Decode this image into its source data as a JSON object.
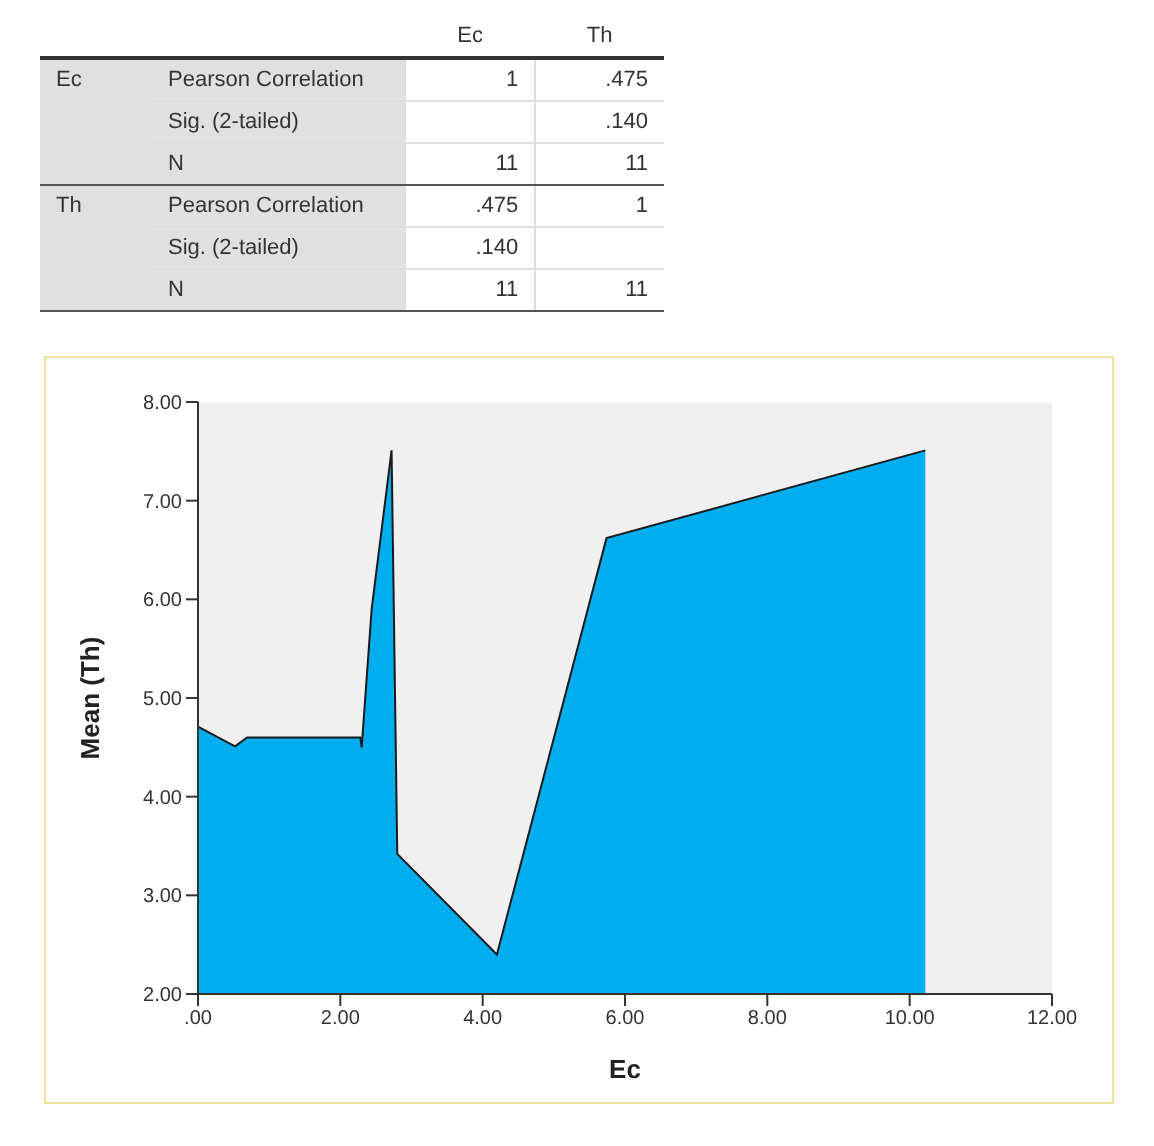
{
  "chart_data": [
    {
      "type": "heatmap",
      "categories": [
        "Ec",
        "Th"
      ],
      "y_categories": [
        "Pearson Correlation",
        "Sig. (2-tailed)",
        "N",
        "Pearson Correlation",
        "Sig. (2-tailed)",
        "N"
      ],
      "cells": [
        [
          1,
          0.475
        ],
        [
          null,
          0.14
        ],
        [
          11,
          11
        ],
        [
          0.475,
          1
        ],
        [
          0.14,
          null
        ],
        [
          11,
          11
        ]
      ],
      "cell_labels": [
        [
          "1",
          ".475"
        ],
        [
          null,
          ".140"
        ],
        [
          "11",
          "11"
        ],
        [
          ".475",
          "1"
        ],
        [
          ".140",
          null
        ],
        [
          "11",
          "11"
        ]
      ],
      "annotations": [
        "Ec",
        "Th"
      ]
    },
    {
      "type": "area",
      "xlabel": "Ec",
      "ylabel": "Mean (Th)",
      "color": "#00aeef",
      "x": [
        0,
        0.52,
        0.69,
        2.28,
        2.3,
        2.44,
        2.72,
        2.8,
        4.2,
        5.74,
        10.22
      ],
      "values": [
        4.71,
        4.51,
        4.6,
        4.6,
        4.5,
        5.9,
        7.51,
        3.42,
        2.4,
        6.62,
        7.51
      ],
      "xlim": [
        0,
        12
      ],
      "xticks": [
        {
          "value": 0,
          "label": ".00"
        },
        {
          "value": 2,
          "label": "2.00"
        },
        {
          "value": 4,
          "label": "4.00"
        },
        {
          "value": 6,
          "label": "6.00"
        },
        {
          "value": 8,
          "label": "8.00"
        },
        {
          "value": 10,
          "label": "10.00"
        },
        {
          "value": 12,
          "label": "12.00"
        }
      ],
      "ylim": [
        2,
        8
      ],
      "yticks": [
        {
          "value": 2,
          "label": "2.00"
        },
        {
          "value": 3,
          "label": "3.00"
        },
        {
          "value": 4,
          "label": "4.00"
        },
        {
          "value": 5,
          "label": "5.00"
        },
        {
          "value": 6,
          "label": "6.00"
        },
        {
          "value": 7,
          "label": "7.00"
        },
        {
          "value": 8,
          "label": "8.00"
        }
      ]
    }
  ]
}
